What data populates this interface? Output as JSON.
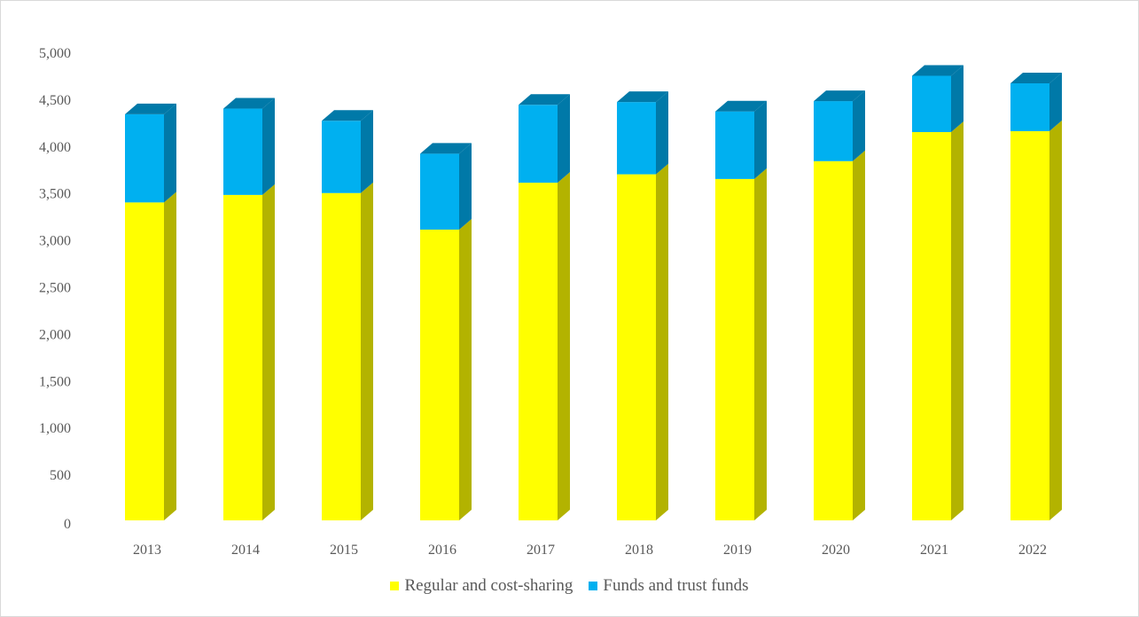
{
  "chart_data": {
    "type": "bar",
    "stacked": true,
    "three_d": true,
    "categories": [
      "2013",
      "2014",
      "2015",
      "2016",
      "2017",
      "2018",
      "2019",
      "2020",
      "2021",
      "2022"
    ],
    "series": [
      {
        "name": "Regular and cost-sharing",
        "color": "#ffff00",
        "side_color": "#b3b300",
        "values": [
          3390,
          3470,
          3490,
          3100,
          3600,
          3690,
          3640,
          3830,
          4140,
          4150
        ]
      },
      {
        "name": "Funds and trust funds",
        "color": "#00b0f0",
        "side_color": "#0079a8",
        "values": [
          940,
          920,
          770,
          810,
          830,
          770,
          720,
          640,
          600,
          510
        ]
      }
    ],
    "ylim": [
      0,
      5000
    ],
    "yticks": [
      0,
      500,
      1000,
      1500,
      2000,
      2500,
      3000,
      3500,
      4000,
      4500,
      5000
    ],
    "ytick_labels": [
      "0",
      "500",
      "1,000",
      "1,500",
      "2,000",
      "2,500",
      "3,000",
      "3,500",
      "4,000",
      "4,500",
      "5,000"
    ],
    "grid": false,
    "legend_position": "bottom"
  }
}
